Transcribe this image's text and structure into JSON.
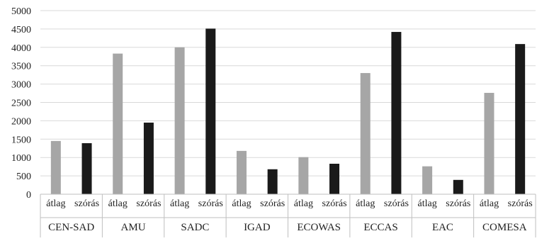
{
  "chart_data": {
    "type": "bar",
    "title": "",
    "xlabel": "",
    "ylabel": "",
    "ylim": [
      0,
      5000
    ],
    "ytick_step": 500,
    "y_ticks": [
      "0",
      "500",
      "1000",
      "1500",
      "2000",
      "2500",
      "3000",
      "3500",
      "4000",
      "4500",
      "5000"
    ],
    "grid": true,
    "legend": "none",
    "colors": {
      "átlag": "#a6a6a6",
      "szórás": "#1a1a1a",
      "grid": "#d9d9d9",
      "axis": "#bfbfbf"
    },
    "groups": [
      {
        "name": "CEN-SAD",
        "bars": [
          {
            "label": "átlag",
            "value": 1450
          },
          {
            "label": "szórás",
            "value": 1390
          }
        ]
      },
      {
        "name": "AMU",
        "bars": [
          {
            "label": "átlag",
            "value": 3830
          },
          {
            "label": "szórás",
            "value": 1950
          }
        ]
      },
      {
        "name": "SADC",
        "bars": [
          {
            "label": "átlag",
            "value": 4000
          },
          {
            "label": "szórás",
            "value": 4510
          }
        ]
      },
      {
        "name": "IGAD",
        "bars": [
          {
            "label": "átlag",
            "value": 1180
          },
          {
            "label": "szórás",
            "value": 680
          }
        ]
      },
      {
        "name": "ECOWAS",
        "bars": [
          {
            "label": "átlag",
            "value": 1010
          },
          {
            "label": "szórás",
            "value": 830
          }
        ]
      },
      {
        "name": "ECCAS",
        "bars": [
          {
            "label": "átlag",
            "value": 3300
          },
          {
            "label": "szórás",
            "value": 4420
          }
        ]
      },
      {
        "name": "EAC",
        "bars": [
          {
            "label": "átlag",
            "value": 760
          },
          {
            "label": "szórás",
            "value": 390
          }
        ]
      },
      {
        "name": "COMESA",
        "bars": [
          {
            "label": "átlag",
            "value": 2760
          },
          {
            "label": "szórás",
            "value": 4090
          }
        ]
      }
    ]
  }
}
